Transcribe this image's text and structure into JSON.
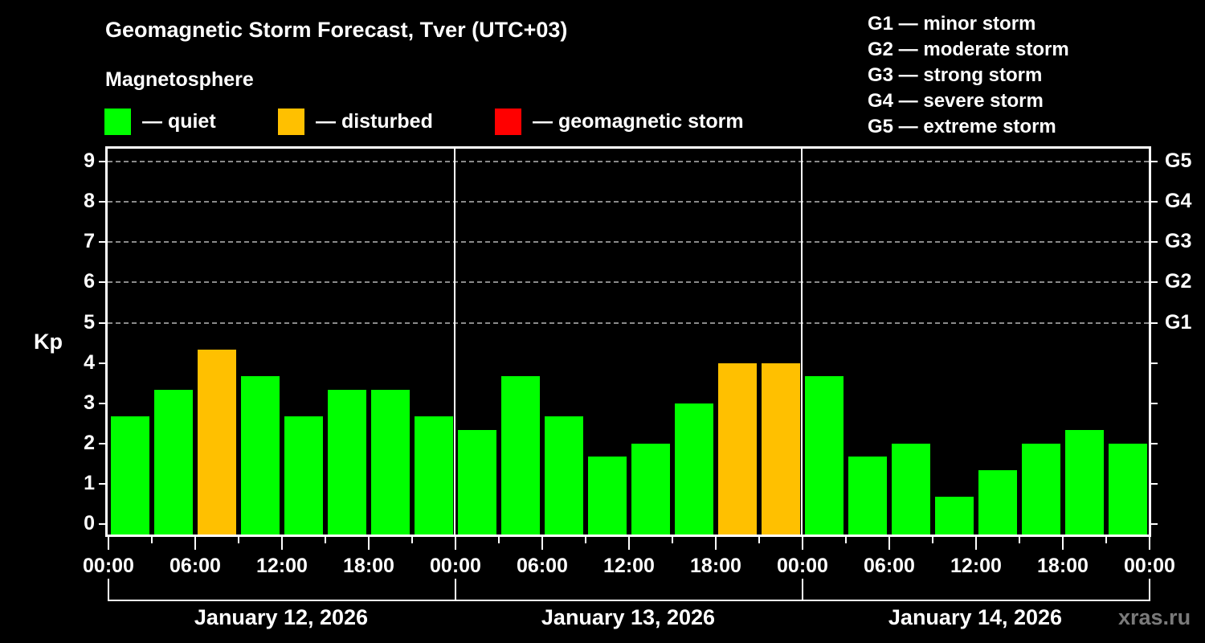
{
  "header": {
    "title": "Geomagnetic Storm Forecast, Tver (UTC+03)",
    "subtitle": "Magnetosphere"
  },
  "legend": [
    {
      "label": "— quiet",
      "color": "#00ff00"
    },
    {
      "label": "— disturbed",
      "color": "#ffc000"
    },
    {
      "label": "— geomagnetic storm",
      "color": "#ff0000"
    }
  ],
  "g_scale": [
    "G1 — minor storm",
    "G2 — moderate storm",
    "G3 — strong storm",
    "G4 — severe storm",
    "G5 — extreme storm"
  ],
  "watermark": "xras.ru",
  "chart_data": {
    "type": "bar",
    "title": "Geomagnetic Storm Forecast, Tver (UTC+03)",
    "subtitle": "Magnetosphere",
    "xlabel": "",
    "ylabel": "Kp",
    "ylim": [
      0,
      9
    ],
    "yticks": [
      0,
      1,
      2,
      3,
      4,
      5,
      6,
      7,
      8,
      9
    ],
    "right_axis_labels": [
      {
        "y": 5,
        "label": "G1"
      },
      {
        "y": 6,
        "label": "G2"
      },
      {
        "y": 7,
        "label": "G3"
      },
      {
        "y": 8,
        "label": "G4"
      },
      {
        "y": 9,
        "label": "G5"
      }
    ],
    "grid": "dashed horizontal at Kp 5–9",
    "legend_position": "top",
    "x_tick_labels": [
      "00:00",
      "06:00",
      "12:00",
      "18:00",
      "00:00",
      "06:00",
      "12:00",
      "18:00",
      "00:00",
      "06:00",
      "12:00",
      "18:00",
      "00:00"
    ],
    "days": [
      "January 12, 2026",
      "January 13, 2026",
      "January 14, 2026"
    ],
    "categories": [
      "Jan 12 00-03",
      "Jan 12 03-06",
      "Jan 12 06-09",
      "Jan 12 09-12",
      "Jan 12 12-15",
      "Jan 12 15-18",
      "Jan 12 18-21",
      "Jan 12 21-24",
      "Jan 13 00-03",
      "Jan 13 03-06",
      "Jan 13 06-09",
      "Jan 13 09-12",
      "Jan 13 12-15",
      "Jan 13 15-18",
      "Jan 13 18-21",
      "Jan 13 21-24",
      "Jan 14 00-03",
      "Jan 14 03-06",
      "Jan 14 06-09",
      "Jan 14 09-12",
      "Jan 14 12-15",
      "Jan 14 15-18",
      "Jan 14 18-21",
      "Jan 14 21-24"
    ],
    "values": [
      2.67,
      3.33,
      4.33,
      3.67,
      2.67,
      3.33,
      3.33,
      2.67,
      2.33,
      3.67,
      2.67,
      1.67,
      2.0,
      3.0,
      4.0,
      4.0,
      3.67,
      1.67,
      2.0,
      0.67,
      1.33,
      2.0,
      2.33,
      2.0
    ],
    "status": [
      "quiet",
      "quiet",
      "disturbed",
      "quiet",
      "quiet",
      "quiet",
      "quiet",
      "quiet",
      "quiet",
      "quiet",
      "quiet",
      "quiet",
      "quiet",
      "quiet",
      "disturbed",
      "disturbed",
      "quiet",
      "quiet",
      "quiet",
      "quiet",
      "quiet",
      "quiet",
      "quiet",
      "quiet"
    ],
    "colors": {
      "quiet": "#00ff00",
      "disturbed": "#ffc000",
      "storm": "#ff0000"
    }
  }
}
